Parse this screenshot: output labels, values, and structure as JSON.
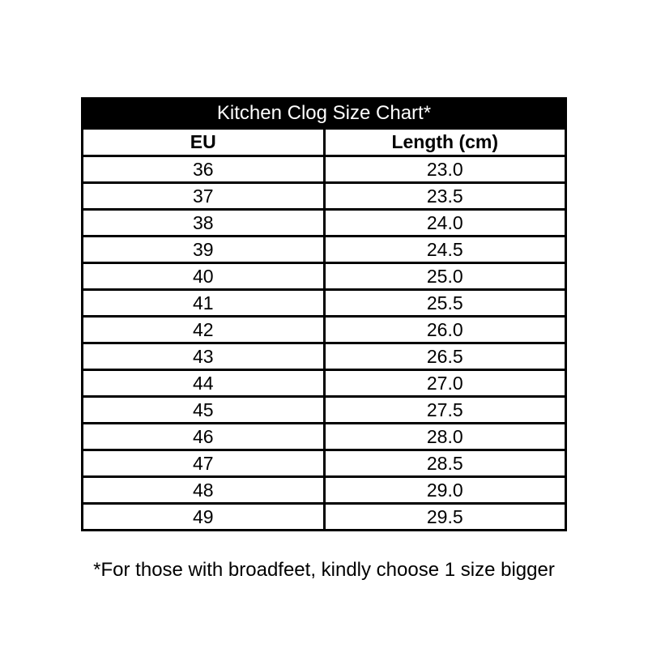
{
  "chart_data": {
    "type": "table",
    "title": "Kitchen Clog Size Chart*",
    "columns": [
      "EU",
      "Length (cm)"
    ],
    "rows": [
      [
        "36",
        "23.0"
      ],
      [
        "37",
        "23.5"
      ],
      [
        "38",
        "24.0"
      ],
      [
        "39",
        "24.5"
      ],
      [
        "40",
        "25.0"
      ],
      [
        "41",
        "25.5"
      ],
      [
        "42",
        "26.0"
      ],
      [
        "43",
        "26.5"
      ],
      [
        "44",
        "27.0"
      ],
      [
        "45",
        "27.5"
      ],
      [
        "46",
        "28.0"
      ],
      [
        "47",
        "28.5"
      ],
      [
        "48",
        "29.0"
      ],
      [
        "49",
        "29.5"
      ]
    ],
    "footnote": "*For those with broadfeet, kindly choose 1 size bigger"
  },
  "colors": {
    "title_bg": "#000000",
    "title_text": "#ffffff",
    "border": "#000000",
    "body_text": "#000000",
    "page_bg": "#ffffff"
  }
}
